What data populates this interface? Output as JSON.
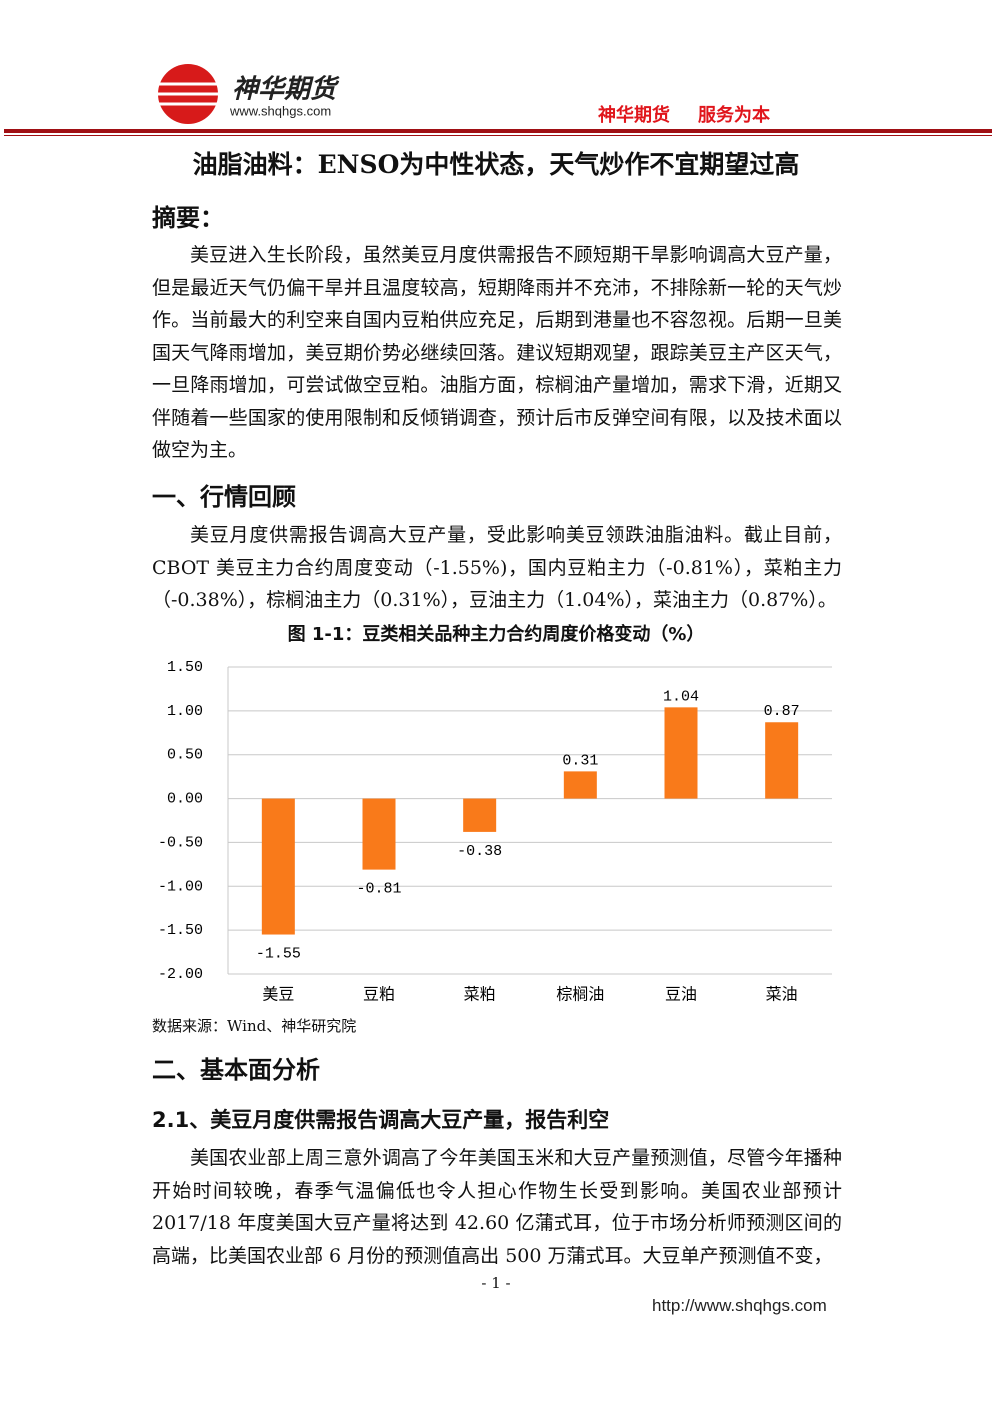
{
  "header": {
    "brand": "神华期货",
    "website": "www.shqhgs.com",
    "slogan": [
      "神华期货",
      "服务为本"
    ]
  },
  "title": "油脂油料：ENSO为中性状态，天气炒作不宜期望过高",
  "abstract": {
    "heading": "摘要：",
    "text": "美豆进入生长阶段，虽然美豆月度供需报告不顾短期干旱影响调高大豆产量，但是最近天气仍偏干旱并且温度较高，短期降雨并不充沛，不排除新一轮的天气炒作。当前最大的利空来自国内豆粕供应充足，后期到港量也不容忽视。后期一旦美国天气降雨增加，美豆期价势必继续回落。建议短期观望，跟踪美豆主产区天气，一旦降雨增加，可尝试做空豆粕。油脂方面，棕榈油产量增加，需求下滑，近期又伴随着一些国家的使用限制和反倾销调查，预计后市反弹空间有限，以及技术面以做空为主。"
  },
  "section1": {
    "heading": "一、行情回顾",
    "text": "美豆月度供需报告调高大豆产量，受此影响美豆领跌油脂油料。截止目前，CBOT 美豆主力合约周度变动（-1.55%)，国内豆粕主力（-0.81%），菜粕主力（-0.38%），棕榈油主力（0.31%），豆油主力（1.04%），菜油主力（0.87%）。"
  },
  "chart_data": {
    "type": "bar",
    "title": "图 1-1：豆类相关品种主力合约周度价格变动（%）",
    "categories": [
      "美豆",
      "豆粕",
      "菜粕",
      "棕榈油",
      "豆油",
      "菜油"
    ],
    "values": [
      -1.55,
      -0.81,
      -0.38,
      0.31,
      1.04,
      0.87
    ],
    "color": "#f97a1a",
    "ylim": [
      -2,
      1.5
    ],
    "yticks": [
      {
        "value": 1.5,
        "label": "1.50"
      },
      {
        "value": 1,
        "label": "1.00"
      },
      {
        "value": 0.5,
        "label": "0.50"
      },
      {
        "value": 0,
        "label": "0.00"
      },
      {
        "value": -0.5,
        "label": "-0.50"
      },
      {
        "value": -1,
        "label": "-1.00"
      },
      {
        "value": -1.5,
        "label": "-1.50"
      },
      {
        "value": -2,
        "label": "-2.00"
      }
    ],
    "grid": true,
    "source": "数据来源：Wind、神华研究院"
  },
  "section2": {
    "heading": "二、基本面分析",
    "subheading": "2.1、美豆月度供需报告调高大豆产量，报告利空",
    "text": "美国农业部上周三意外调高了今年美国玉米和大豆产量预测值，尽管今年播种开始时间较晚，春季气温偏低也令人担心作物生长受到影响。美国农业部预计 2017/18 年度美国大豆产量将达到 42.60 亿蒲式耳，位于市场分析师预测区间的高端，比美国农业部 6 月份的预测值高出 500 万蒲式耳。大豆单产预测值不变，"
  },
  "footer": {
    "page_number": "- 1 -",
    "url": "http://www.shqhgs.com"
  }
}
